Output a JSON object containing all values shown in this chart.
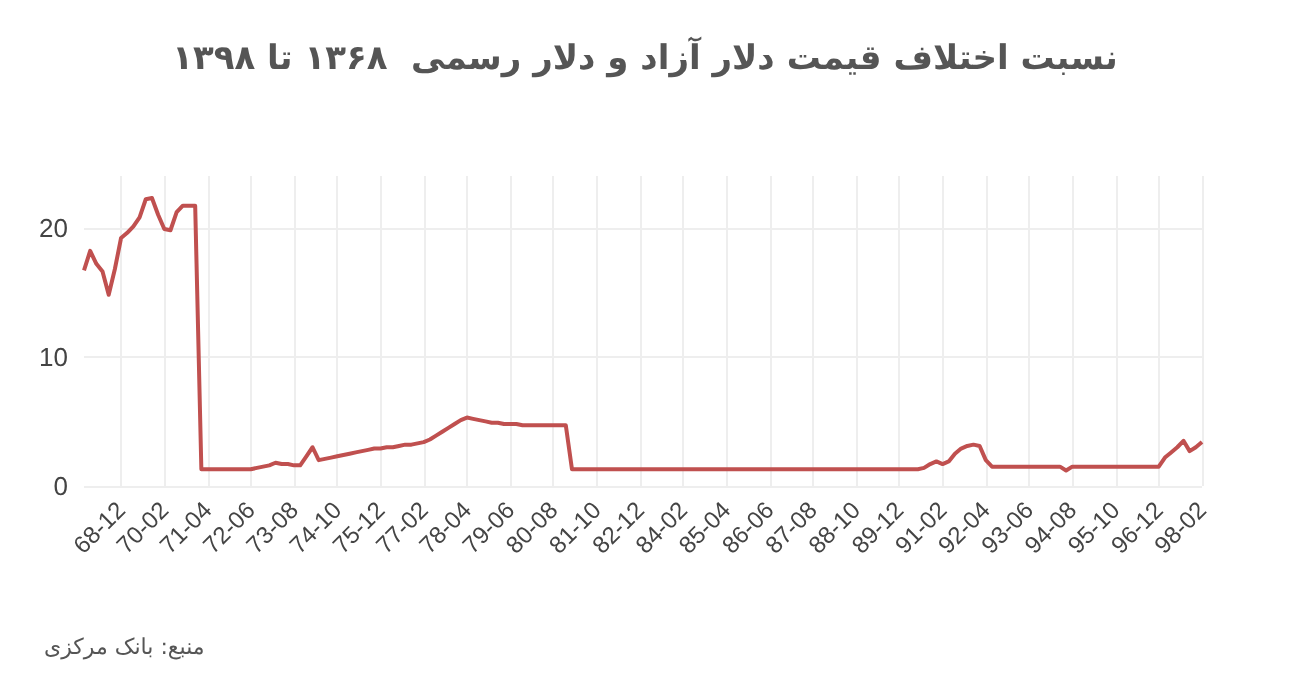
{
  "chart_data": {
    "type": "line",
    "title": "نسبت اختلاف قیمت دلار آزاد و دلار رسمی  ۱۳۶۸ تا ۱۳۹۸",
    "annotations": [
      "منبع: بانک مرکزی"
    ],
    "categories": [
      null,
      null,
      null,
      null,
      null,
      null,
      "68-12",
      null,
      null,
      null,
      null,
      null,
      null,
      "70-02",
      null,
      null,
      null,
      null,
      null,
      null,
      "71-04",
      null,
      null,
      null,
      null,
      null,
      null,
      "72-06",
      null,
      null,
      null,
      null,
      null,
      null,
      "73-08",
      null,
      null,
      null,
      null,
      null,
      null,
      "74-10",
      null,
      null,
      null,
      null,
      null,
      null,
      "75-12",
      null,
      null,
      null,
      null,
      null,
      null,
      "77-02",
      null,
      null,
      null,
      null,
      null,
      null,
      "78-04",
      null,
      null,
      null,
      null,
      null,
      null,
      "79-06",
      null,
      null,
      null,
      null,
      null,
      null,
      "80-08",
      null,
      null,
      null,
      null,
      null,
      null,
      "81-10",
      null,
      null,
      null,
      null,
      null,
      null,
      "82-12",
      null,
      null,
      null,
      null,
      null,
      null,
      "84-02",
      null,
      null,
      null,
      null,
      null,
      null,
      "85-04",
      null,
      null,
      null,
      null,
      null,
      null,
      "86-06",
      null,
      null,
      null,
      null,
      null,
      null,
      "87-08",
      null,
      null,
      null,
      null,
      null,
      null,
      "88-10",
      null,
      null,
      null,
      null,
      null,
      null,
      "89-12",
      null,
      null,
      null,
      null,
      null,
      null,
      "91-02",
      null,
      null,
      null,
      null,
      null,
      null,
      "92-04",
      null,
      null,
      null,
      null,
      null,
      null,
      "93-06",
      null,
      null,
      null,
      null,
      null,
      null,
      "94-08",
      null,
      null,
      null,
      null,
      null,
      null,
      "95-10",
      null,
      null,
      null,
      null,
      null,
      null,
      "96-12",
      null,
      null,
      null,
      null,
      null,
      null,
      "98-02"
    ],
    "series": [
      {
        "color": "#c0504f",
        "values": [
          16.7,
          18.2,
          17.2,
          16.6,
          14.8,
          16.8,
          19.2,
          19.6,
          20.1,
          20.8,
          22.2,
          22.3,
          21.0,
          19.9,
          19.8,
          21.2,
          21.7,
          21.7,
          21.7,
          1.3,
          1.3,
          1.3,
          1.3,
          1.3,
          1.3,
          1.3,
          1.3,
          1.3,
          1.4,
          1.5,
          1.6,
          1.8,
          1.7,
          1.7,
          1.6,
          1.6,
          2.3,
          3.0,
          2.0,
          2.1,
          2.2,
          2.3,
          2.4,
          2.5,
          2.6,
          2.7,
          2.8,
          2.9,
          2.9,
          3.0,
          3.0,
          3.1,
          3.2,
          3.2,
          3.3,
          3.4,
          3.6,
          3.9,
          4.2,
          4.5,
          4.8,
          5.1,
          5.3,
          5.2,
          5.1,
          5.0,
          4.9,
          4.9,
          4.8,
          4.8,
          4.8,
          4.7,
          4.7,
          4.7,
          4.7,
          4.7,
          4.7,
          4.7,
          4.7,
          1.3,
          1.3,
          1.3,
          1.3,
          1.3,
          1.3,
          1.3,
          1.3,
          1.3,
          1.3,
          1.3,
          1.3,
          1.3,
          1.3,
          1.3,
          1.3,
          1.3,
          1.3,
          1.3,
          1.3,
          1.3,
          1.3,
          1.3,
          1.3,
          1.3,
          1.3,
          1.3,
          1.3,
          1.3,
          1.3,
          1.3,
          1.3,
          1.3,
          1.3,
          1.3,
          1.3,
          1.3,
          1.3,
          1.3,
          1.3,
          1.3,
          1.3,
          1.3,
          1.3,
          1.3,
          1.3,
          1.3,
          1.3,
          1.3,
          1.3,
          1.3,
          1.3,
          1.3,
          1.3,
          1.3,
          1.3,
          1.3,
          1.4,
          1.7,
          1.9,
          1.7,
          1.9,
          2.5,
          2.9,
          3.1,
          3.2,
          3.1,
          2.0,
          1.5,
          1.5,
          1.5,
          1.5,
          1.5,
          1.5,
          1.5,
          1.5,
          1.5,
          1.5,
          1.5,
          1.5,
          1.2,
          1.5,
          1.5,
          1.5,
          1.5,
          1.5,
          1.5,
          1.5,
          1.5,
          1.5,
          1.5,
          1.5,
          1.5,
          1.5,
          1.5,
          1.5,
          2.2,
          2.6,
          3.0,
          3.5,
          2.7,
          3.0,
          3.4
        ]
      }
    ],
    "ylim": [
      0,
      24
    ],
    "yticks": [
      0,
      10,
      20
    ],
    "grid": true,
    "marker": "none",
    "line_style": "solid"
  }
}
